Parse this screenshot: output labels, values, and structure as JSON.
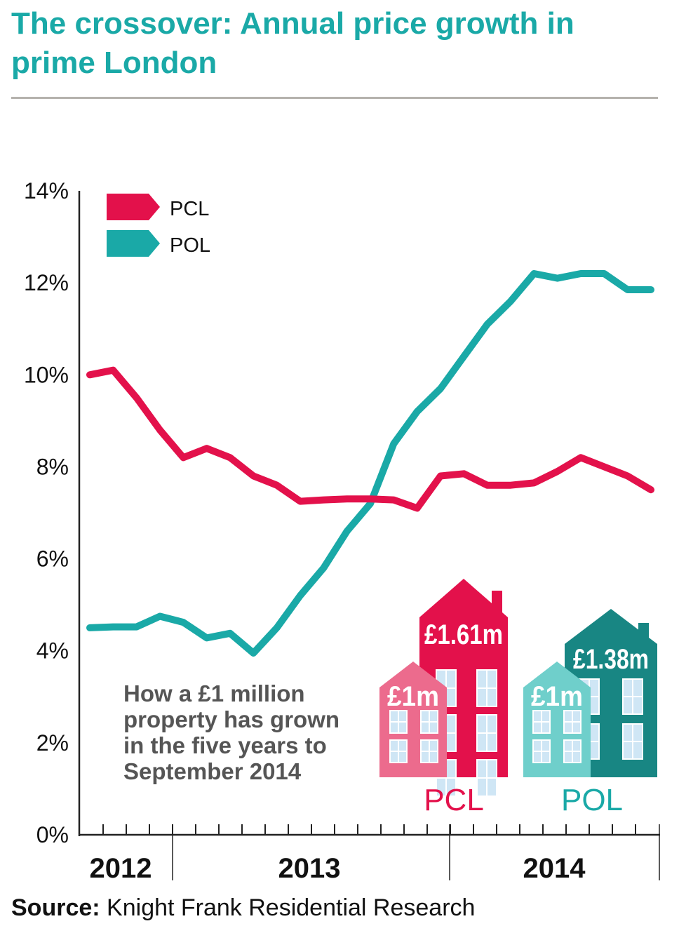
{
  "title": "The crossover: Annual price growth in prime London",
  "source_label": "Source:",
  "source_text": "Knight Frank Residential Research",
  "colors": {
    "pcl": "#e3114b",
    "pol": "#1aa9a7",
    "pcl_light": "#ec6b8d",
    "pol_light": "#6fcfcb",
    "pol_dark": "#188683",
    "title": "#1aa9a7"
  },
  "annotation": [
    "How a £1 million",
    "property has grown",
    "in the five years to",
    "September 2014"
  ],
  "houses": {
    "pcl": {
      "before": "£1m",
      "after": "£1.61m",
      "label": "PCL"
    },
    "pol": {
      "before": "£1m",
      "after": "£1.38m",
      "label": "POL"
    }
  },
  "chart_data": {
    "type": "line",
    "title": "The crossover: Annual price growth in prime London",
    "xlabel": "",
    "ylabel": "",
    "ylim": [
      0,
      14
    ],
    "yticks": [
      "0%",
      "2%",
      "4%",
      "6%",
      "8%",
      "10%",
      "12%",
      "14%"
    ],
    "year_labels": [
      "2012",
      "2013",
      "2014"
    ],
    "x": [
      0,
      1,
      2,
      3,
      4,
      5,
      6,
      7,
      8,
      9,
      10,
      11,
      12,
      13,
      14,
      15,
      16,
      17,
      18,
      19,
      20,
      21,
      22,
      23,
      24
    ],
    "series": [
      {
        "name": "PCL",
        "values": [
          10.0,
          10.1,
          9.5,
          8.8,
          8.2,
          8.4,
          8.2,
          7.8,
          7.6,
          7.25,
          7.28,
          7.3,
          7.3,
          7.28,
          7.1,
          7.8,
          7.85,
          7.6,
          7.6,
          7.65,
          7.9,
          8.2,
          8.0,
          7.8,
          7.5
        ]
      },
      {
        "name": "POL",
        "values": [
          4.5,
          4.52,
          4.52,
          4.75,
          4.62,
          4.28,
          4.38,
          3.95,
          4.5,
          5.2,
          5.8,
          6.6,
          7.2,
          8.5,
          9.2,
          9.7,
          10.4,
          11.1,
          11.6,
          12.2,
          12.1,
          12.2,
          12.2,
          11.85,
          11.85
        ]
      }
    ]
  }
}
